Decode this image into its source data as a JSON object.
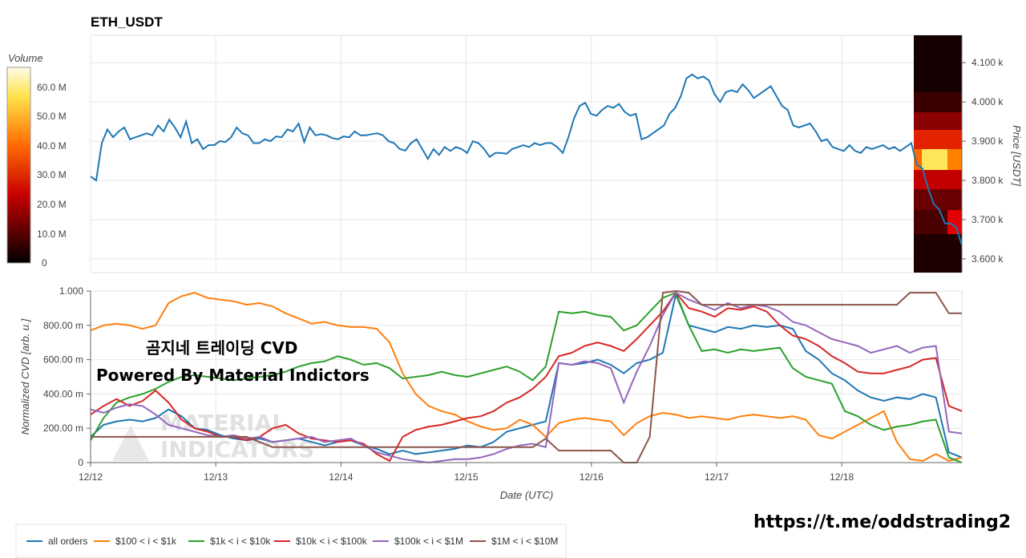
{
  "header": {
    "title": "ETH_USDT"
  },
  "overlay": {
    "line1": "곰지네 트레이딩 CVD",
    "line2": "Powered By Material Indictors",
    "watermark_line1": "MATERIAL",
    "watermark_line2": "INDICATORS"
  },
  "footer": {
    "link": "https://t.me/oddstrading2"
  },
  "colorbar": {
    "label": "Volume",
    "ticks": [
      "60.0 M",
      "50.0 M",
      "40.0 M",
      "30.0 M",
      "20.0 M",
      "10.0 M",
      "0"
    ]
  },
  "colors": {
    "all_orders": "#1f77b4",
    "b100_1k": "#ff7f0e",
    "b1k_10k": "#2ca02c",
    "b10k_100k": "#d62728",
    "b100k_1m": "#9467bd",
    "b1m_10m": "#8c564b"
  },
  "chart_data": [
    {
      "type": "line",
      "name": "price",
      "ylabel": "Price [USDT]",
      "yticks": [
        "4.100 k",
        "4.000 k",
        "3.900 k",
        "3.800 k",
        "3.700 k",
        "3.600 k"
      ],
      "ylim": [
        3565,
        4170
      ],
      "xlim": [
        0,
        7
      ],
      "series": [
        {
          "values": [
            3810,
            3800,
            3895,
            3930,
            3910,
            3925,
            3935,
            3905,
            3910,
            3915,
            3920,
            3915,
            3940,
            3925,
            3955,
            3935,
            3910,
            3950,
            3895,
            3905,
            3880,
            3890,
            3890,
            3900,
            3898,
            3910,
            3935,
            3920,
            3915,
            3895,
            3895,
            3905,
            3900,
            3912,
            3910,
            3930,
            3925,
            3945,
            3898,
            3935,
            3915,
            3918,
            3915,
            3908,
            3905,
            3912,
            3910,
            3925,
            3915,
            3915,
            3918,
            3920,
            3915,
            3900,
            3895,
            3880,
            3876,
            3895,
            3905,
            3880,
            3855,
            3880,
            3865,
            3885,
            3875,
            3885,
            3880,
            3870,
            3900,
            3895,
            3880,
            3860,
            3870,
            3870,
            3868,
            3880,
            3885,
            3890,
            3885,
            3895,
            3890,
            3895,
            3895,
            3885,
            3870,
            3910,
            3958,
            3990,
            3998,
            3970,
            3965,
            3980,
            3990,
            3985,
            3995,
            3975,
            3965,
            3970,
            3905,
            3910,
            3920,
            3930,
            3940,
            3970,
            3985,
            4015,
            4060,
            4070,
            4060,
            4065,
            4055,
            4020,
            4000,
            4025,
            4030,
            4025,
            4045,
            4030,
            4010,
            4020,
            4030,
            4040,
            4015,
            3990,
            3980,
            3940,
            3935,
            3940,
            3945,
            3925,
            3900,
            3905,
            3885,
            3880,
            3875,
            3890,
            3875,
            3870,
            3885,
            3880,
            3885,
            3890,
            3880,
            3885,
            3875,
            3885,
            3895,
            3840,
            3830,
            3780,
            3740,
            3725,
            3690,
            3690,
            3680,
            3635
          ]
        }
      ]
    },
    {
      "type": "line",
      "name": "cvd",
      "xlabel": "Date (UTC)",
      "ylabel": "Normalized CVD [arb. u.]",
      "xticks": [
        "12/12",
        "12/13",
        "12/14",
        "12/15",
        "12/16",
        "12/17",
        "12/18"
      ],
      "yticks": [
        "1.000",
        "800.00 m",
        "600.00 m",
        "400.00 m",
        "200.00 m",
        "0"
      ],
      "ylim": [
        0,
        1.0
      ],
      "xlim": [
        0,
        7
      ],
      "legend_position": "bottom",
      "series": [
        {
          "name": "all orders",
          "values": [
            0.15,
            0.22,
            0.24,
            0.25,
            0.24,
            0.26,
            0.31,
            0.27,
            0.2,
            0.19,
            0.16,
            0.14,
            0.13,
            0.14,
            0.12,
            0.13,
            0.14,
            0.12,
            0.1,
            0.12,
            0.13,
            0.1,
            0.08,
            0.05,
            0.07,
            0.05,
            0.06,
            0.07,
            0.08,
            0.1,
            0.09,
            0.12,
            0.18,
            0.2,
            0.22,
            0.24,
            0.58,
            0.57,
            0.58,
            0.6,
            0.57,
            0.52,
            0.58,
            0.6,
            0.64,
            0.98,
            0.8,
            0.78,
            0.76,
            0.79,
            0.78,
            0.8,
            0.79,
            0.8,
            0.78,
            0.65,
            0.6,
            0.52,
            0.48,
            0.42,
            0.38,
            0.36,
            0.38,
            0.37,
            0.4,
            0.38,
            0.06,
            0.03
          ]
        },
        {
          "name": "$100 < i < $1k",
          "values": [
            0.77,
            0.8,
            0.81,
            0.8,
            0.78,
            0.8,
            0.93,
            0.97,
            0.99,
            0.96,
            0.95,
            0.94,
            0.92,
            0.93,
            0.91,
            0.87,
            0.84,
            0.81,
            0.82,
            0.8,
            0.79,
            0.79,
            0.78,
            0.7,
            0.52,
            0.4,
            0.33,
            0.3,
            0.28,
            0.24,
            0.21,
            0.19,
            0.2,
            0.25,
            0.22,
            0.15,
            0.23,
            0.25,
            0.26,
            0.25,
            0.24,
            0.16,
            0.23,
            0.27,
            0.29,
            0.28,
            0.26,
            0.27,
            0.26,
            0.25,
            0.27,
            0.28,
            0.27,
            0.26,
            0.27,
            0.25,
            0.16,
            0.14,
            0.18,
            0.22,
            0.26,
            0.3,
            0.12,
            0.02,
            0.01,
            0.05,
            0.01,
            0.03
          ]
        },
        {
          "name": "$1k < i < $10k",
          "values": [
            0.13,
            0.26,
            0.35,
            0.38,
            0.4,
            0.43,
            0.47,
            0.5,
            0.51,
            0.5,
            0.49,
            0.48,
            0.49,
            0.5,
            0.51,
            0.53,
            0.56,
            0.58,
            0.59,
            0.62,
            0.6,
            0.57,
            0.58,
            0.55,
            0.49,
            0.5,
            0.51,
            0.53,
            0.51,
            0.5,
            0.52,
            0.54,
            0.56,
            0.53,
            0.48,
            0.56,
            0.88,
            0.87,
            0.88,
            0.86,
            0.85,
            0.77,
            0.8,
            0.88,
            0.96,
            0.99,
            0.8,
            0.65,
            0.66,
            0.64,
            0.66,
            0.65,
            0.66,
            0.67,
            0.55,
            0.5,
            0.48,
            0.46,
            0.3,
            0.27,
            0.22,
            0.19,
            0.21,
            0.22,
            0.24,
            0.25,
            0.03,
            0.0
          ]
        },
        {
          "name": "$10k < i < $100k",
          "values": [
            0.28,
            0.33,
            0.37,
            0.33,
            0.36,
            0.42,
            0.35,
            0.25,
            0.2,
            0.18,
            0.15,
            0.15,
            0.13,
            0.15,
            0.2,
            0.22,
            0.17,
            0.14,
            0.13,
            0.12,
            0.13,
            0.11,
            0.05,
            0.01,
            0.15,
            0.19,
            0.21,
            0.22,
            0.24,
            0.26,
            0.27,
            0.3,
            0.35,
            0.38,
            0.43,
            0.5,
            0.62,
            0.64,
            0.68,
            0.7,
            0.68,
            0.65,
            0.72,
            0.8,
            0.88,
            0.99,
            0.9,
            0.88,
            0.85,
            0.9,
            0.89,
            0.91,
            0.88,
            0.8,
            0.74,
            0.72,
            0.68,
            0.62,
            0.58,
            0.53,
            0.52,
            0.52,
            0.54,
            0.56,
            0.6,
            0.61,
            0.33,
            0.3
          ]
        },
        {
          "name": "$100k < i < $1M",
          "values": [
            0.31,
            0.29,
            0.32,
            0.34,
            0.33,
            0.28,
            0.22,
            0.2,
            0.18,
            0.16,
            0.15,
            0.16,
            0.14,
            0.15,
            0.12,
            0.13,
            0.14,
            0.15,
            0.12,
            0.13,
            0.14,
            0.1,
            0.06,
            0.04,
            0.02,
            0.01,
            0.0,
            0.01,
            0.02,
            0.02,
            0.03,
            0.05,
            0.08,
            0.1,
            0.11,
            0.09,
            0.58,
            0.57,
            0.59,
            0.58,
            0.55,
            0.35,
            0.53,
            0.68,
            0.86,
            0.99,
            0.95,
            0.92,
            0.89,
            0.93,
            0.9,
            0.92,
            0.91,
            0.88,
            0.82,
            0.8,
            0.76,
            0.72,
            0.7,
            0.68,
            0.64,
            0.66,
            0.68,
            0.64,
            0.67,
            0.68,
            0.18,
            0.17
          ]
        },
        {
          "name": "$1M < i < $10M",
          "values": [
            0.15,
            0.15,
            0.15,
            0.15,
            0.15,
            0.15,
            0.15,
            0.15,
            0.15,
            0.15,
            0.15,
            0.15,
            0.15,
            0.12,
            0.09,
            0.09,
            0.09,
            0.09,
            0.09,
            0.09,
            0.09,
            0.09,
            0.09,
            0.09,
            0.09,
            0.09,
            0.09,
            0.09,
            0.09,
            0.09,
            0.09,
            0.09,
            0.09,
            0.09,
            0.09,
            0.14,
            0.07,
            0.07,
            0.07,
            0.07,
            0.07,
            0.0,
            0.0,
            0.15,
            0.99,
            1.0,
            0.99,
            0.92,
            0.92,
            0.92,
            0.92,
            0.92,
            0.92,
            0.92,
            0.92,
            0.92,
            0.92,
            0.92,
            0.92,
            0.92,
            0.92,
            0.92,
            0.92,
            0.99,
            0.99,
            0.99,
            0.87,
            0.87
          ]
        }
      ]
    }
  ]
}
